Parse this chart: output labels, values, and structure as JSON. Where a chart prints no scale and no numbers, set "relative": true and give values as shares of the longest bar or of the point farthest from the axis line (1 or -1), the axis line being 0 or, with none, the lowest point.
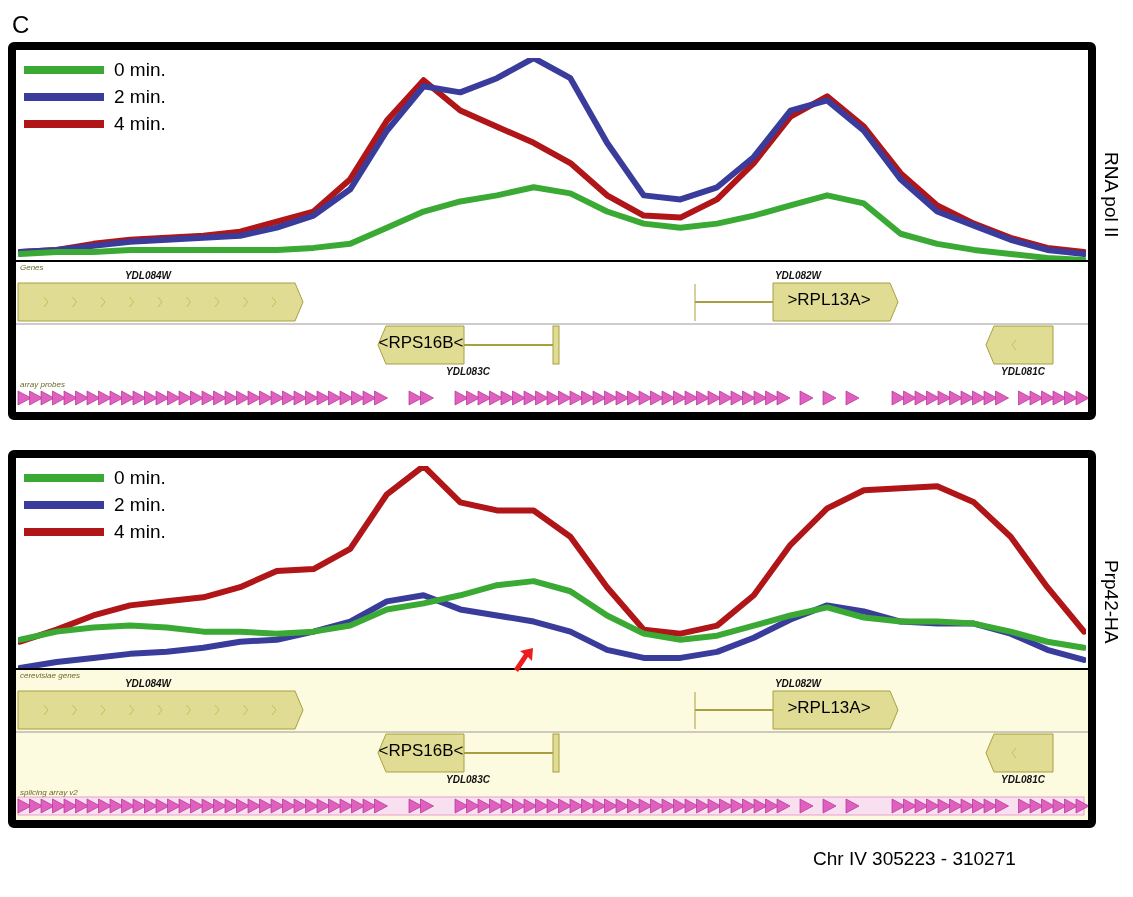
{
  "chart_data": [
    {
      "type": "line",
      "title": "C",
      "ylabel": "RNA pol II",
      "relative": true,
      "legend": "top left",
      "marker": "none",
      "line_style": "solid",
      "categories": [
        null,
        null,
        null,
        null,
        null,
        null,
        null,
        null,
        null,
        null,
        null,
        null,
        null,
        null,
        null,
        null,
        null,
        null,
        null,
        null,
        null,
        null,
        null,
        null,
        null,
        null,
        null,
        null,
        null,
        null
      ],
      "series": [
        {
          "name": "0 min.",
          "color": "#3aaa35",
          "values": [
            0.03,
            0.04,
            0.04,
            0.05,
            0.05,
            0.05,
            0.05,
            0.05,
            0.06,
            0.08,
            0.16,
            0.24,
            0.29,
            0.32,
            0.36,
            0.33,
            0.24,
            0.18,
            0.16,
            0.18,
            0.22,
            0.27,
            0.32,
            0.28,
            0.13,
            0.08,
            0.05,
            0.03,
            0.01,
            0
          ]
        },
        {
          "name": "2 min.",
          "color": "#3a3c9c",
          "values": [
            0.04,
            0.05,
            0.07,
            0.09,
            0.1,
            0.11,
            0.12,
            0.16,
            0.22,
            0.35,
            0.64,
            0.86,
            0.83,
            0.9,
            1,
            0.9,
            0.58,
            0.32,
            0.3,
            0.36,
            0.51,
            0.74,
            0.79,
            0.64,
            0.4,
            0.24,
            0.17,
            0.1,
            0.05,
            0.03
          ]
        },
        {
          "name": "4 min.",
          "color": "#b01518",
          "values": [
            0.04,
            0.05,
            0.08,
            0.1,
            0.11,
            0.12,
            0.14,
            0.19,
            0.24,
            0.4,
            0.69,
            0.89,
            0.74,
            0.66,
            0.58,
            0.48,
            0.32,
            0.22,
            0.21,
            0.3,
            0.48,
            0.71,
            0.81,
            0.66,
            0.43,
            0.27,
            0.18,
            0.11,
            0.06,
            0.04
          ]
        }
      ],
      "annotations": [
        "Genes",
        "YDL084W",
        "YDL082W",
        ">RPL13A>",
        "<RPS16B<",
        "YDL083C",
        "YDL081C",
        "array probes"
      ]
    },
    {
      "type": "line",
      "ylabel": "Prp42-HA",
      "relative": true,
      "legend": "top left",
      "marker": "none",
      "line_style": "solid",
      "categories": [
        null,
        null,
        null,
        null,
        null,
        null,
        null,
        null,
        null,
        null,
        null,
        null,
        null,
        null,
        null,
        null,
        null,
        null,
        null,
        null,
        null,
        null,
        null,
        null,
        null,
        null,
        null,
        null,
        null,
        null
      ],
      "series": [
        {
          "name": "0 min.",
          "color": "#3aaa35",
          "values": [
            0.14,
            0.18,
            0.2,
            0.21,
            0.2,
            0.18,
            0.18,
            0.17,
            0.18,
            0.21,
            0.29,
            0.32,
            0.36,
            0.41,
            0.43,
            0.38,
            0.26,
            0.17,
            0.14,
            0.16,
            0.21,
            0.26,
            0.3,
            0.25,
            0.23,
            0.23,
            0.22,
            0.18,
            0.13,
            0.1
          ]
        },
        {
          "name": "2 min.",
          "color": "#3a3c9c",
          "values": [
            0,
            0.03,
            0.05,
            0.07,
            0.08,
            0.1,
            0.13,
            0.14,
            0.18,
            0.23,
            0.33,
            0.36,
            0.29,
            0.26,
            0.23,
            0.18,
            0.09,
            0.05,
            0.05,
            0.08,
            0.15,
            0.24,
            0.31,
            0.28,
            0.23,
            0.22,
            0.22,
            0.17,
            0.09,
            0.04
          ]
        },
        {
          "name": "4 min.",
          "color": "#b01518",
          "values": [
            0.13,
            0.19,
            0.26,
            0.31,
            0.33,
            0.35,
            0.4,
            0.48,
            0.49,
            0.59,
            0.86,
            1,
            0.82,
            0.78,
            0.78,
            0.65,
            0.4,
            0.19,
            0.17,
            0.21,
            0.36,
            0.61,
            0.79,
            0.88,
            0.89,
            0.9,
            0.82,
            0.65,
            0.4,
            0.18
          ]
        }
      ],
      "annotations": [
        "cerevisiae genes",
        "YDL084W",
        "YDL082W",
        ">RPL13A>",
        "<RPS16B<",
        "YDL083C",
        "YDL081C",
        "splicing array v2",
        "Chr IV 305223 - 310271"
      ]
    }
  ]
}
